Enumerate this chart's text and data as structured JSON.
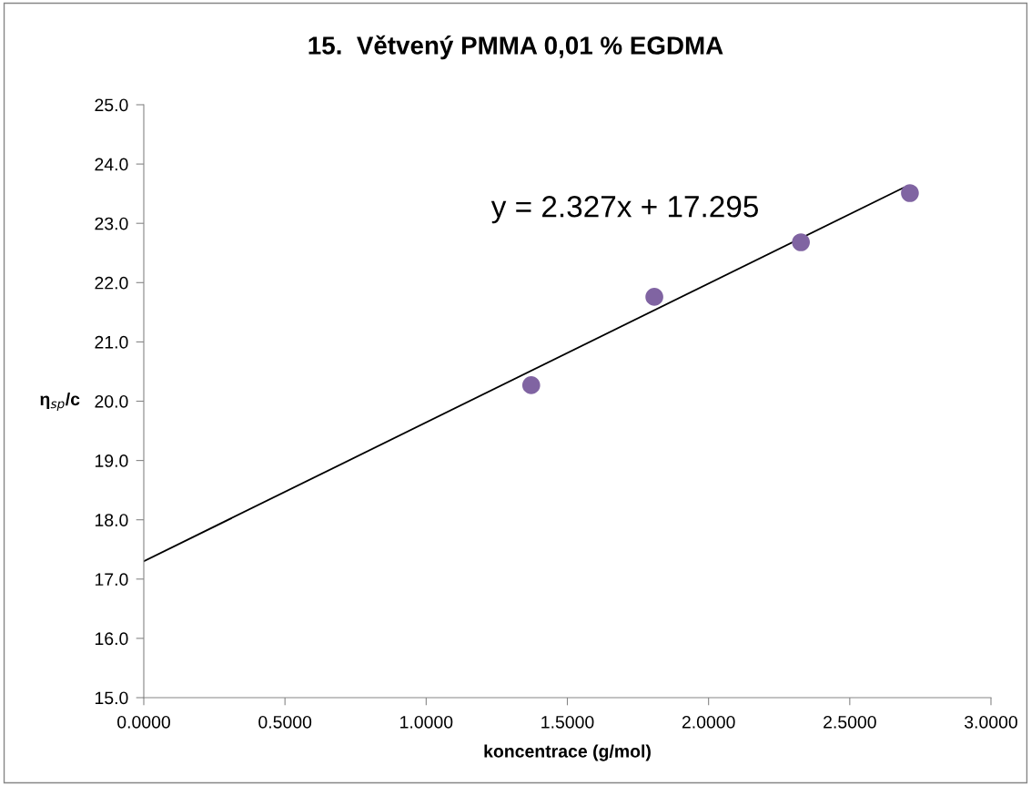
{
  "chart_data": {
    "type": "scatter",
    "title": "15.  Větvený PMMA 0,01 % EGDMA",
    "xlabel": "koncentrace (g/mol)",
    "ylabel": "η$_{sp}$/c",
    "series": [
      {
        "color": "#8064a2",
        "x": [
          1.372,
          1.808,
          2.327,
          2.713
        ],
        "values": [
          20.27,
          21.76,
          22.68,
          23.51
        ],
        "marker": "circle"
      },
      {
        "type": "line",
        "color": "#000000",
        "x": [
          0,
          2.69
        ],
        "values": [
          17.3,
          23.6
        ],
        "marker": "none",
        "line_style": "solid"
      }
    ],
    "annotations": [
      "y = 2.327x + 17.295"
    ],
    "xlim": [
      0,
      3
    ],
    "xticks": [
      {
        "value": 0,
        "label": "0.0000"
      },
      {
        "value": 0.5,
        "label": "0.5000"
      },
      {
        "value": 1,
        "label": "1.0000"
      },
      {
        "value": 1.5,
        "label": "1.5000"
      },
      {
        "value": 2,
        "label": "2.0000"
      },
      {
        "value": 2.5,
        "label": "2.5000"
      },
      {
        "value": 3,
        "label": "3.0000"
      }
    ],
    "ylim": [
      15,
      25
    ],
    "yticks": [
      {
        "value": 15,
        "label": "15.0"
      },
      {
        "value": 16,
        "label": "16.0"
      },
      {
        "value": 17,
        "label": "17.0"
      },
      {
        "value": 18,
        "label": "18.0"
      },
      {
        "value": 19,
        "label": "19.0"
      },
      {
        "value": 20,
        "label": "20.0"
      },
      {
        "value": 21,
        "label": "21.0"
      },
      {
        "value": 22,
        "label": "22.0"
      },
      {
        "value": 23,
        "label": "23.0"
      },
      {
        "value": 24,
        "label": "24.0"
      },
      {
        "value": 25,
        "label": "25.0"
      }
    ],
    "grid": false,
    "legend": false
  }
}
